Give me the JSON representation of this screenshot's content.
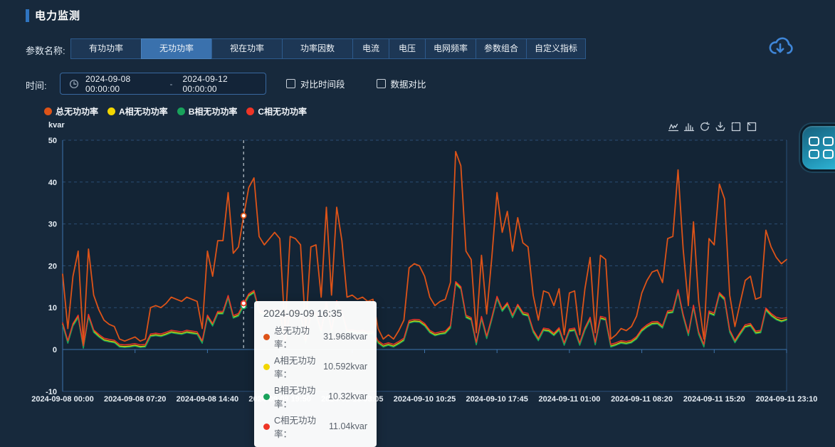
{
  "header": {
    "title": "电力监测"
  },
  "params": {
    "label": "参数名称:",
    "tabs": [
      {
        "label": "有功功率",
        "active": false
      },
      {
        "label": "无功功率",
        "active": true
      },
      {
        "label": "视在功率",
        "active": false
      },
      {
        "label": "功率因数",
        "active": false
      },
      {
        "label": "电流",
        "active": false
      },
      {
        "label": "电压",
        "active": false
      },
      {
        "label": "电网频率",
        "active": false
      },
      {
        "label": "参数组合",
        "active": false
      },
      {
        "label": "自定义指标",
        "active": false
      }
    ]
  },
  "time": {
    "label": "时间:",
    "range_start": "2024-09-08 00:00:00",
    "range_separator": "-",
    "range_end": "2024-09-12 00:00:00",
    "checkboxes": [
      {
        "label": "对比时间段",
        "checked": false
      },
      {
        "label": "数据对比",
        "checked": false
      }
    ]
  },
  "toolbox": [
    "line-chart",
    "bar-chart",
    "restore",
    "save-image",
    "zoom-select",
    "zoom-reset"
  ],
  "colors": {
    "accent": "#2f74c0",
    "tab_active": "#3a71ad",
    "download_icon": "#3f86d8",
    "grid_line": "#2b4d74",
    "axis_line": "#3e74ad"
  },
  "chart_data": {
    "type": "line",
    "unit": "kvar",
    "ylim": [
      -10,
      50
    ],
    "yticks": [
      50,
      40,
      30,
      20,
      10,
      0,
      -10
    ],
    "xticks": [
      "2024-09-08 00:00",
      "2024-09-08 07:20",
      "2024-09-08 14:40",
      "2024-09-09 19:50",
      "2024-09-10 03:05",
      "2024-09-10 10:25",
      "2024-09-10 17:45",
      "2024-09-11 01:00",
      "2024-09-11 08:20",
      "2024-09-11 15:20",
      "2024-09-11 23:10"
    ],
    "grid": "dashed-horizontal",
    "legend_position": "top-left",
    "legend": [
      {
        "name": "总无功功率",
        "color": "#dd5318"
      },
      {
        "name": "A相无功功率",
        "color": "#f2d600"
      },
      {
        "name": "B相无功功率",
        "color": "#19a25b"
      },
      {
        "name": "C相无功功率",
        "color": "#ee3526"
      }
    ],
    "series": [
      {
        "name": "A相无功功率",
        "color": "#f2d600",
        "values": [
          6,
          1.7,
          5.8,
          7.8,
          0.5,
          8,
          4.3,
          3.2,
          2.3,
          2,
          1.8,
          0.8,
          0.7,
          0.8,
          1,
          0.7,
          0.8,
          3.3,
          3.5,
          3.3,
          3.7,
          4.2,
          4,
          3.8,
          4.2,
          4,
          3.8,
          1.7,
          7.8,
          5.8,
          8.7,
          8.7,
          12.5,
          7.7,
          8.2,
          10.592,
          12.9,
          13.7,
          9,
          8.3,
          8.8,
          9.3,
          8.8,
          1.5,
          9,
          8.8,
          8.3,
          1.7,
          8.2,
          8.3,
          4.2,
          11,
          4.3,
          11.2,
          8.7,
          4.2,
          4.3,
          4,
          4.2,
          3.8,
          4,
          1.7,
          0.8,
          1.2,
          0.8,
          1.5,
          2.3,
          6.5,
          6.8,
          6.7,
          5.8,
          4.2,
          3.5,
          3.8,
          4,
          5.3,
          15.8,
          14.6,
          7.8,
          7.2,
          1.3,
          7.5,
          2.8,
          7.3,
          12.3,
          9.3,
          10.8,
          7.8,
          10.4,
          8.5,
          8.2,
          4.3,
          2.3,
          4.7,
          4.5,
          3.5,
          4.8,
          1.2,
          4.5,
          4.7,
          1.2,
          4.8,
          7.3,
          1.3,
          7.5,
          7.2,
          0.8,
          1.2,
          1.7,
          1.5,
          1.8,
          2.7,
          4.5,
          5.5,
          6.2,
          6.3,
          5.3,
          8.8,
          9,
          13.9,
          8,
          3.5,
          10.2,
          3.8,
          0.8,
          8.8,
          8.3,
          13.2,
          12,
          4.3,
          1.8,
          3.7,
          5.5,
          5.8,
          4,
          4.2,
          9.5,
          8.2,
          7.3,
          6.8,
          7.2
        ]
      },
      {
        "name": "B相无功功率",
        "color": "#19a25b",
        "values": [
          5.8,
          1.5,
          5.6,
          7.6,
          0.3,
          7.8,
          4.1,
          3,
          2.1,
          1.8,
          1.6,
          0.6,
          0.5,
          0.6,
          0.8,
          0.5,
          0.6,
          3.1,
          3.3,
          3.1,
          3.5,
          4,
          3.8,
          3.6,
          4,
          3.8,
          3.6,
          1.5,
          7.6,
          5.6,
          8.5,
          8.5,
          12.3,
          7.5,
          8,
          10.32,
          12.7,
          13.5,
          8.8,
          8.1,
          8.6,
          9.1,
          8.6,
          1.3,
          8.8,
          8.6,
          8.1,
          1.5,
          8,
          8.1,
          4,
          10.8,
          4.1,
          11,
          8.5,
          4,
          4.1,
          3.8,
          4,
          3.6,
          3.8,
          1.5,
          0.6,
          1,
          0.6,
          1.3,
          2.1,
          6.3,
          6.6,
          6.5,
          5.6,
          4,
          3.3,
          3.6,
          3.8,
          5.1,
          15.6,
          14.4,
          7.6,
          7,
          1.1,
          7.3,
          2.6,
          7.1,
          12.1,
          9.1,
          10.6,
          7.6,
          10.2,
          8.3,
          8,
          4.1,
          2.1,
          4.5,
          4.3,
          3.3,
          4.6,
          1,
          4.3,
          4.5,
          1,
          4.6,
          7.1,
          1.1,
          7.3,
          7,
          0.6,
          1,
          1.5,
          1.3,
          1.6,
          2.5,
          4.3,
          5.3,
          6,
          6.1,
          5.1,
          8.6,
          8.8,
          13.7,
          7.8,
          3.3,
          10,
          3.6,
          0.6,
          8.6,
          8.1,
          13,
          11.8,
          4.1,
          1.6,
          3.5,
          5.3,
          5.6,
          3.8,
          4,
          9.3,
          8,
          7.1,
          6.6,
          7
        ]
      },
      {
        "name": "C相无功功率",
        "color": "#ee3526",
        "values": [
          6.4,
          2.1,
          6.2,
          8.2,
          0.9,
          8.4,
          4.7,
          3.6,
          2.7,
          2.4,
          2.2,
          1.2,
          1.1,
          1.2,
          1.4,
          1.1,
          1.2,
          3.7,
          3.9,
          3.7,
          4.1,
          4.6,
          4.4,
          4.2,
          4.6,
          4.4,
          4.2,
          2.1,
          8.2,
          6.2,
          9.1,
          9.1,
          12.9,
          8.1,
          8.6,
          11.04,
          13.3,
          14.1,
          9.4,
          8.7,
          9.2,
          9.7,
          9.2,
          1.9,
          9.4,
          9.2,
          8.7,
          2.1,
          8.6,
          8.7,
          4.6,
          11.4,
          4.7,
          11.6,
          9.1,
          4.6,
          4.7,
          4.4,
          4.6,
          4.2,
          4.4,
          2.1,
          1.2,
          1.6,
          1.2,
          1.9,
          2.7,
          6.9,
          7.2,
          7.1,
          6.2,
          4.6,
          3.9,
          4.2,
          4.4,
          5.7,
          16.2,
          15,
          8.2,
          7.6,
          1.7,
          7.9,
          3.2,
          7.7,
          12.7,
          9.7,
          11.2,
          8.2,
          10.8,
          8.9,
          8.6,
          4.7,
          2.7,
          5.1,
          4.9,
          3.9,
          5.2,
          1.6,
          4.9,
          5.1,
          1.6,
          5.2,
          7.7,
          1.7,
          7.9,
          7.6,
          1.2,
          1.6,
          2.1,
          1.9,
          2.2,
          3.1,
          4.9,
          5.9,
          6.6,
          6.7,
          5.7,
          9.2,
          9.4,
          14.3,
          8.4,
          3.9,
          10.6,
          4.2,
          1.2,
          9.2,
          8.7,
          13.6,
          12.4,
          4.7,
          2.2,
          4.1,
          5.9,
          6.2,
          4.4,
          4.6,
          9.9,
          8.6,
          7.7,
          7.4,
          7.6
        ]
      },
      {
        "name": "总无功功率",
        "color": "#dd5318",
        "values": [
          18,
          5,
          17.5,
          23.5,
          1.5,
          24,
          13,
          9.5,
          7,
          6,
          5.5,
          2.5,
          2,
          2.5,
          3,
          2,
          2.5,
          10,
          10.5,
          10,
          11,
          12.5,
          12,
          11.5,
          12.5,
          12,
          11.5,
          5,
          23.5,
          17.5,
          26,
          26,
          37.5,
          23,
          24.5,
          31.968,
          38.7,
          41,
          27,
          25,
          26.5,
          28,
          26.5,
          4.5,
          27,
          26.5,
          25,
          5,
          24.5,
          25,
          12.5,
          34,
          13,
          34,
          26,
          12.5,
          13,
          12,
          12.5,
          11.5,
          12,
          5,
          2.5,
          3.5,
          2.5,
          4.5,
          7,
          19.5,
          20.5,
          20,
          17.5,
          12.5,
          10.5,
          11.5,
          12,
          16,
          47.3,
          43.9,
          23.5,
          21.5,
          4,
          22.5,
          8.5,
          22,
          37.5,
          28,
          33,
          23.5,
          31.5,
          25.5,
          24.5,
          13,
          7,
          14,
          13.5,
          10.5,
          14.5,
          3.5,
          13.5,
          14,
          3.5,
          14.5,
          22,
          4,
          22.5,
          21.5,
          2.5,
          3.5,
          5,
          4.5,
          5.5,
          8,
          13.5,
          16.5,
          18.5,
          19,
          16,
          26.5,
          27,
          42.9,
          24,
          10.5,
          30.5,
          11.5,
          2.5,
          26.5,
          25,
          39.5,
          36,
          13,
          5.5,
          11,
          16.5,
          17.5,
          12,
          12.5,
          28.5,
          24.5,
          22,
          20.5,
          21.5
        ]
      }
    ],
    "tooltip": {
      "index": 35,
      "title": "2024-09-09 16:35",
      "rows": [
        {
          "label": "总无功功率：",
          "value": "31.968kvar",
          "color": "#dd5318"
        },
        {
          "label": "A相无功功率：",
          "value": "10.592kvar",
          "color": "#f2d600"
        },
        {
          "label": "B相无功功率：",
          "value": "10.32kvar",
          "color": "#19a25b"
        },
        {
          "label": "C相无功功率：",
          "value": "11.04kvar",
          "color": "#ee3526"
        }
      ]
    }
  }
}
